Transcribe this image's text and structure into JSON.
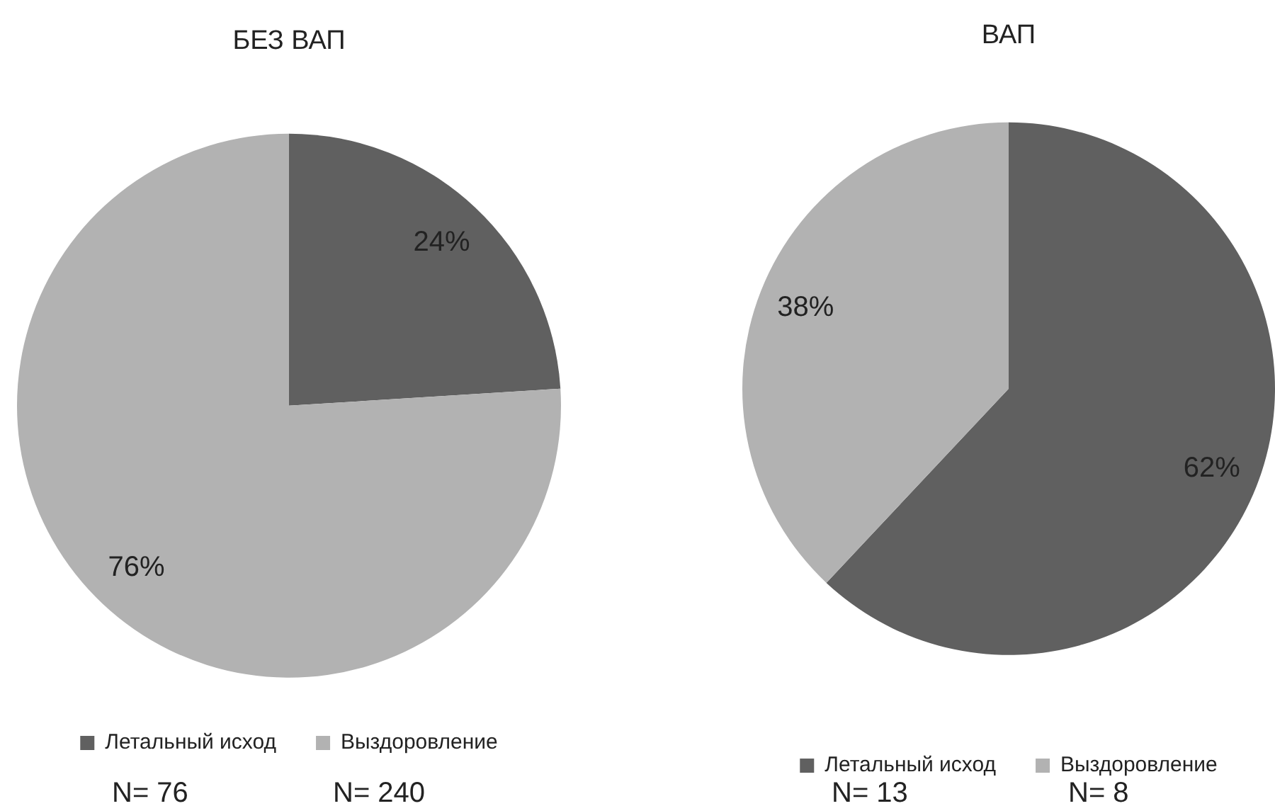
{
  "chart_data": [
    {
      "type": "pie",
      "title": "БЕЗ ВАП",
      "categories": [
        "Летальный исход",
        "Выздоровление"
      ],
      "values": [
        24,
        76
      ],
      "colors": [
        "#606060",
        "#b2b2b2"
      ],
      "value_labels": [
        "24%",
        "76%"
      ],
      "legend": "bottom",
      "annotations": [
        "N= 76",
        "N= 240"
      ]
    },
    {
      "type": "pie",
      "title": "ВАП",
      "categories": [
        "Летальный исход",
        "Выздоровление"
      ],
      "values": [
        62,
        38
      ],
      "colors": [
        "#606060",
        "#b2b2b2"
      ],
      "value_labels": [
        "62%",
        "38%"
      ],
      "legend": "bottom",
      "annotations": [
        "N= 13",
        "N= 8"
      ]
    }
  ]
}
